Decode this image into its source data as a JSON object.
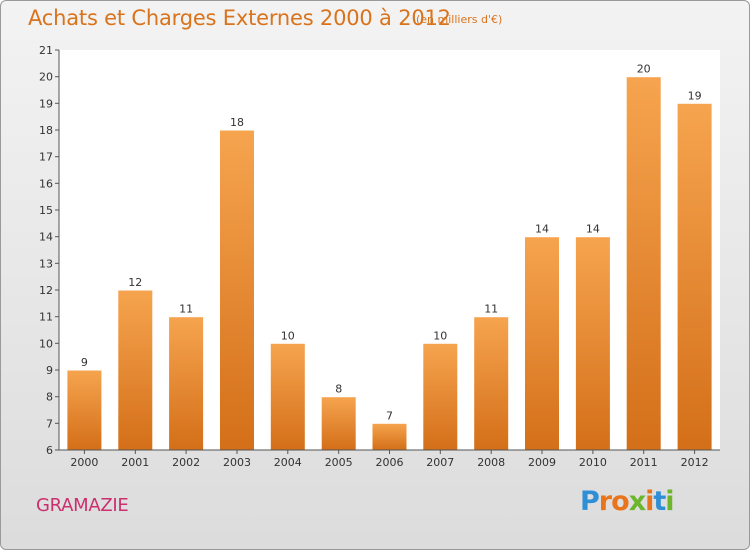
{
  "header": {
    "title": "Achats et Charges Externes 2000 à 2012",
    "unit": "(en milliers d'€)"
  },
  "footer": {
    "place": "GRAMAZIE",
    "logo_letters": [
      "P",
      "r",
      "o",
      "x",
      "i",
      "t",
      "i"
    ],
    "logo_colors": [
      "#2f8fd6",
      "#e8741c",
      "#e8741c",
      "#6cb52d",
      "#e8741c",
      "#2f8fd6",
      "#6cb52d"
    ]
  },
  "chart_data": {
    "type": "bar",
    "title": "Achats et Charges Externes 2000 à 2012",
    "subtitle": "(en milliers d'€)",
    "xlabel": "",
    "ylabel": "",
    "categories": [
      "2000",
      "2001",
      "2002",
      "2003",
      "2004",
      "2005",
      "2006",
      "2007",
      "2008",
      "2009",
      "2010",
      "2011",
      "2012"
    ],
    "values": [
      9,
      12,
      11,
      18,
      10,
      8,
      7,
      10,
      11,
      14,
      14,
      20,
      19
    ],
    "ylim": [
      6,
      21
    ],
    "yticks": [
      6,
      7,
      8,
      9,
      10,
      11,
      12,
      13,
      14,
      15,
      16,
      17,
      18,
      19,
      20,
      21
    ],
    "grid": false,
    "bar_color_top": "#f6a44f",
    "bar_color_bottom": "#d46f19"
  }
}
